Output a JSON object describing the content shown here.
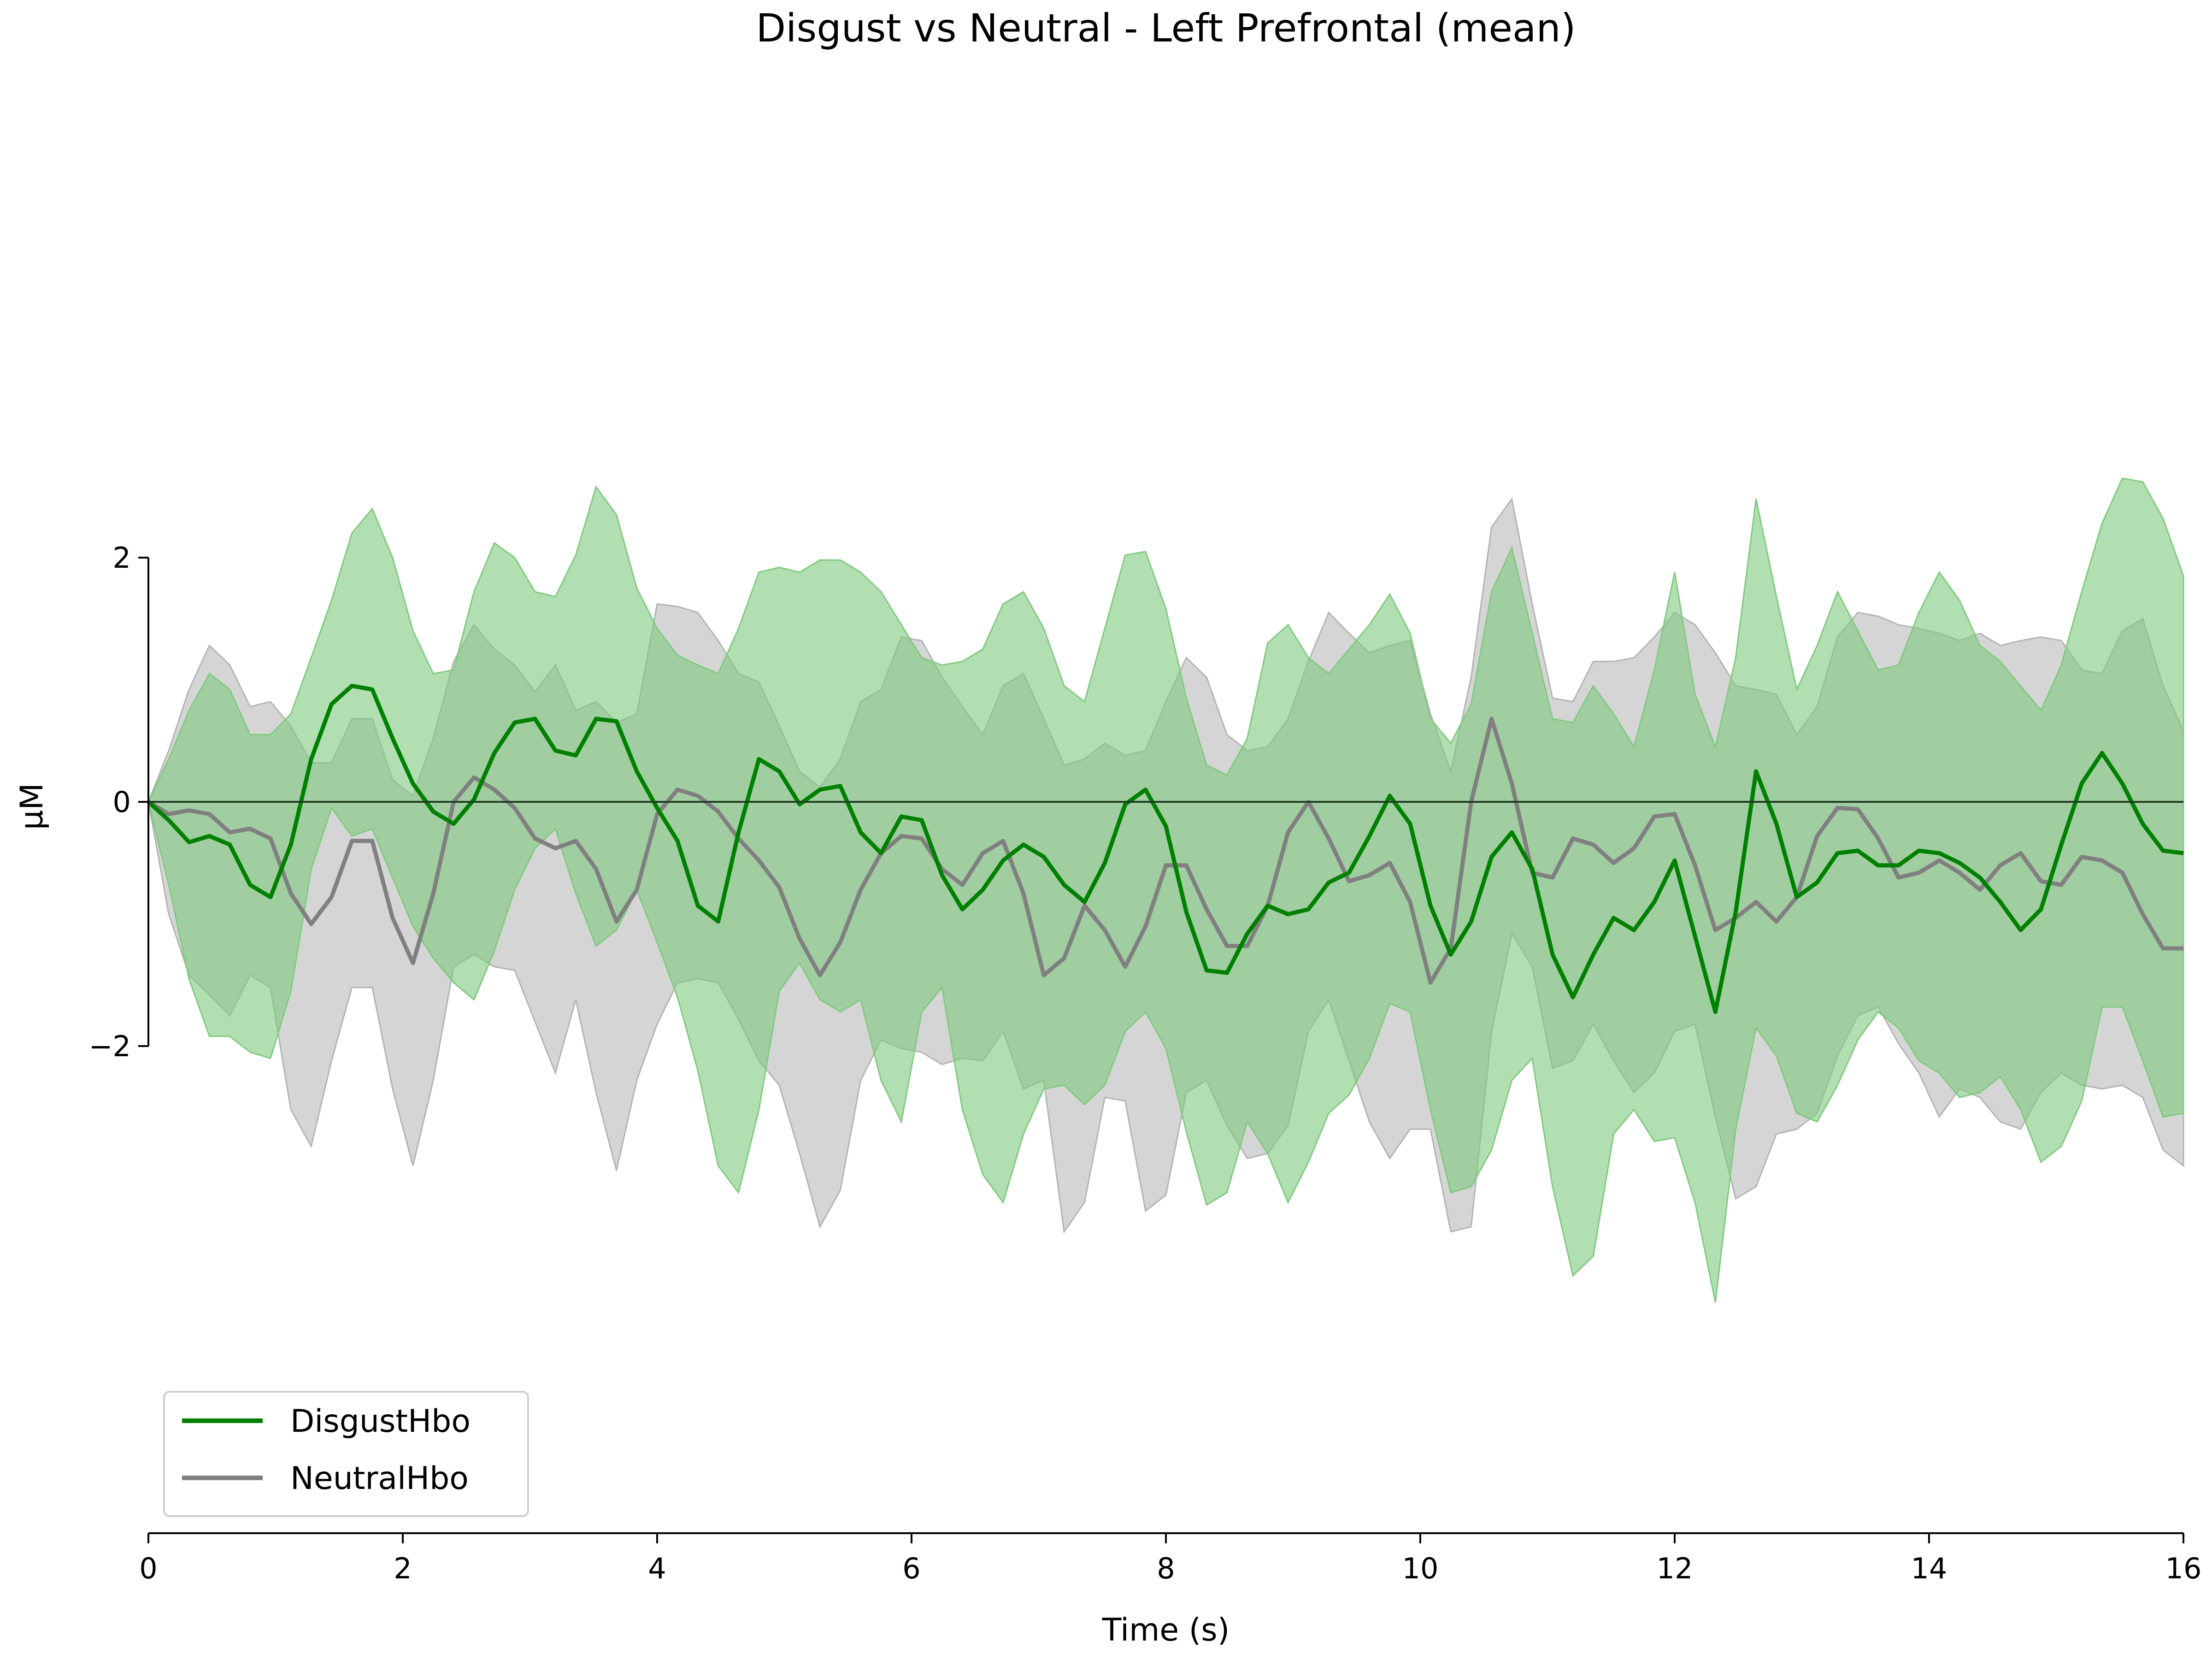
{
  "chart_data": {
    "type": "line",
    "title": "Disgust vs Neutral - Left Prefrontal (mean)",
    "xlabel": "Time (s)",
    "ylabel": "µM",
    "xlim": [
      0,
      16
    ],
    "ylim": [
      -5,
      5
    ],
    "x_ticks": [
      0,
      2,
      4,
      6,
      8,
      10,
      12,
      14,
      16
    ],
    "x_tick_labels": [
      "0",
      "2",
      "4",
      "6",
      "8",
      "10",
      "12",
      "14",
      "16"
    ],
    "y_ticks": [
      -2,
      0,
      2
    ],
    "y_tick_labels": [
      "−2",
      "0",
      "2"
    ],
    "grid": false,
    "legend_position": "lower-left",
    "zero_line": true,
    "x": [
      0.0,
      0.16,
      0.32,
      0.48,
      0.64,
      0.8,
      0.96,
      1.12,
      1.28,
      1.44,
      1.6,
      1.76,
      1.92,
      2.08,
      2.24,
      2.4,
      2.56,
      2.72,
      2.88,
      3.04,
      3.2,
      3.36,
      3.52,
      3.68,
      3.84,
      4.0,
      4.16,
      4.32,
      4.48,
      4.64,
      4.8,
      4.96,
      5.12,
      5.28,
      5.44,
      5.6,
      5.76,
      5.92,
      6.08,
      6.24,
      6.4,
      6.56,
      6.72,
      6.88,
      7.04,
      7.2,
      7.36,
      7.52,
      7.68,
      7.84,
      8.0,
      8.16,
      8.32,
      8.48,
      8.64,
      8.8,
      8.96,
      9.12,
      9.28,
      9.44,
      9.6,
      9.76,
      9.92,
      10.08,
      10.24,
      10.4,
      10.56,
      10.72,
      10.88,
      11.04,
      11.2,
      11.36,
      11.52,
      11.68,
      11.84,
      12.0,
      12.16,
      12.32,
      12.48,
      12.64,
      12.8,
      12.96,
      13.12,
      13.28,
      13.44,
      13.6,
      13.76,
      13.92,
      14.08,
      14.24,
      14.4,
      14.56,
      14.72,
      14.88,
      15.04,
      15.2,
      15.36,
      15.52,
      15.68,
      15.84,
      16.0
    ],
    "series": [
      {
        "name": "DisgustHbo",
        "color": "#008000",
        "band_color": "#7fc97f",
        "values": [
          0.0,
          -0.15,
          -0.33,
          -0.28,
          -0.35,
          -0.68,
          -0.78,
          -0.35,
          0.35,
          0.8,
          0.95,
          0.92,
          0.52,
          0.15,
          -0.08,
          -0.18,
          0.02,
          0.4,
          0.65,
          0.68,
          0.42,
          0.38,
          0.68,
          0.66,
          0.25,
          -0.05,
          -0.32,
          -0.85,
          -0.98,
          -0.25,
          0.35,
          0.25,
          -0.02,
          0.1,
          0.13,
          -0.25,
          -0.42,
          -0.12,
          -0.15,
          -0.6,
          -0.88,
          -0.72,
          -0.48,
          -0.35,
          -0.45,
          -0.68,
          -0.82,
          -0.5,
          -0.02,
          0.1,
          -0.2,
          -0.9,
          -1.38,
          -1.4,
          -1.08,
          -0.85,
          -0.92,
          -0.88,
          -0.66,
          -0.58,
          -0.28,
          0.05,
          -0.18,
          -0.85,
          -1.25,
          -0.98,
          -0.45,
          -0.25,
          -0.55,
          -1.25,
          -1.6,
          -1.25,
          -0.95,
          -1.05,
          -0.82,
          -0.48,
          -1.1,
          -1.72,
          -0.9,
          0.25,
          -0.18,
          -0.78,
          -0.66,
          -0.42,
          -0.4,
          -0.52,
          -0.52,
          -0.4,
          -0.42,
          -0.5,
          -0.62,
          -0.82,
          -1.05,
          -0.88,
          -0.35,
          0.15,
          0.4,
          0.15,
          -0.18,
          -0.4,
          -0.42
        ],
        "upper": [
          0.0,
          0.35,
          0.75,
          1.05,
          0.92,
          0.55,
          0.55,
          0.72,
          1.18,
          1.65,
          2.2,
          2.4,
          2.0,
          1.4,
          1.05,
          1.08,
          1.72,
          2.12,
          2.0,
          1.72,
          1.68,
          2.02,
          2.58,
          2.35,
          1.75,
          1.42,
          1.2,
          1.12,
          1.05,
          1.42,
          1.88,
          1.92,
          1.88,
          1.98,
          1.98,
          1.88,
          1.72,
          1.45,
          1.18,
          1.12,
          1.15,
          1.25,
          1.62,
          1.72,
          1.42,
          0.95,
          0.82,
          1.42,
          2.02,
          2.05,
          1.58,
          0.85,
          0.3,
          0.22,
          0.52,
          1.3,
          1.45,
          1.18,
          1.05,
          1.25,
          1.45,
          1.7,
          1.38,
          0.68,
          0.48,
          0.8,
          1.72,
          2.08,
          1.38,
          0.68,
          0.65,
          0.95,
          0.72,
          0.45,
          1.08,
          1.88,
          0.88,
          0.45,
          1.18,
          2.48,
          1.68,
          0.92,
          1.28,
          1.72,
          1.4,
          1.08,
          1.12,
          1.55,
          1.88,
          1.65,
          1.28,
          1.15,
          0.95,
          0.75,
          1.12,
          1.72,
          2.28,
          2.65,
          2.62,
          2.32,
          1.85
        ],
        "lower": [
          0.0,
          -0.68,
          -1.45,
          -1.92,
          -1.92,
          -2.05,
          -2.1,
          -1.55,
          -0.55,
          -0.05,
          -0.28,
          -0.22,
          -0.62,
          -1.02,
          -1.28,
          -1.48,
          -1.62,
          -1.22,
          -0.72,
          -0.38,
          -0.22,
          -0.75,
          -1.18,
          -1.05,
          -0.72,
          -1.15,
          -1.6,
          -2.2,
          -2.98,
          -3.2,
          -2.52,
          -1.55,
          -1.32,
          -1.62,
          -1.72,
          -1.62,
          -2.28,
          -2.62,
          -1.72,
          -1.52,
          -2.52,
          -3.05,
          -3.28,
          -2.72,
          -2.35,
          -2.32,
          -2.48,
          -2.32,
          -1.88,
          -1.72,
          -2.02,
          -2.7,
          -3.3,
          -3.2,
          -2.62,
          -2.88,
          -3.28,
          -2.95,
          -2.55,
          -2.4,
          -2.1,
          -1.65,
          -1.72,
          -2.52,
          -3.2,
          -3.15,
          -2.85,
          -2.28,
          -2.1,
          -3.15,
          -3.88,
          -3.72,
          -2.72,
          -2.52,
          -2.78,
          -2.75,
          -3.28,
          -4.1,
          -2.68,
          -1.85,
          -2.08,
          -2.55,
          -2.62,
          -2.32,
          -1.95,
          -1.72,
          -1.85,
          -2.12,
          -2.22,
          -2.42,
          -2.38,
          -2.25,
          -2.52,
          -2.95,
          -2.82,
          -2.45,
          -1.68,
          -1.68,
          -2.12,
          -2.58,
          -2.55
        ]
      },
      {
        "name": "NeutralHbo",
        "color": "#808080",
        "band_color": "#b3b3b3",
        "values": [
          0.0,
          -0.1,
          -0.07,
          -0.1,
          -0.25,
          -0.22,
          -0.3,
          -0.75,
          -1.0,
          -0.78,
          -0.32,
          -0.32,
          -0.95,
          -1.32,
          -0.75,
          0.0,
          0.2,
          0.1,
          -0.05,
          -0.3,
          -0.38,
          -0.32,
          -0.55,
          -0.98,
          -0.72,
          -0.1,
          0.1,
          0.05,
          -0.08,
          -0.3,
          -0.48,
          -0.7,
          -1.12,
          -1.42,
          -1.15,
          -0.72,
          -0.42,
          -0.28,
          -0.3,
          -0.55,
          -0.68,
          -0.42,
          -0.32,
          -0.75,
          -1.42,
          -1.28,
          -0.85,
          -1.05,
          -1.35,
          -1.02,
          -0.52,
          -0.52,
          -0.88,
          -1.18,
          -1.18,
          -0.85,
          -0.25,
          0.0,
          -0.3,
          -0.65,
          -0.6,
          -0.5,
          -0.82,
          -1.48,
          -1.2,
          0.0,
          0.68,
          0.15,
          -0.58,
          -0.62,
          -0.3,
          -0.35,
          -0.5,
          -0.38,
          -0.12,
          -0.1,
          -0.52,
          -1.05,
          -0.95,
          -0.82,
          -0.98,
          -0.78,
          -0.28,
          -0.05,
          -0.06,
          -0.3,
          -0.62,
          -0.58,
          -0.48,
          -0.58,
          -0.72,
          -0.52,
          -0.42,
          -0.65,
          -0.68,
          -0.45,
          -0.48,
          -0.58,
          -0.92,
          -1.2,
          -1.2
        ],
        "upper": [
          0.0,
          0.42,
          0.92,
          1.28,
          1.12,
          0.78,
          0.82,
          0.62,
          0.32,
          0.32,
          0.68,
          0.68,
          0.18,
          0.05,
          0.52,
          1.15,
          1.45,
          1.25,
          1.12,
          0.9,
          1.12,
          0.75,
          0.82,
          0.65,
          0.72,
          1.62,
          1.6,
          1.55,
          1.32,
          1.05,
          0.98,
          0.62,
          0.25,
          0.12,
          0.35,
          0.82,
          0.92,
          1.35,
          1.32,
          1.02,
          0.78,
          0.55,
          0.95,
          1.05,
          0.68,
          0.3,
          0.35,
          0.48,
          0.38,
          0.42,
          0.82,
          1.18,
          1.02,
          0.55,
          0.42,
          0.45,
          0.68,
          1.15,
          1.55,
          1.38,
          1.22,
          1.28,
          1.32,
          0.72,
          0.25,
          1.02,
          2.25,
          2.48,
          1.62,
          0.85,
          0.82,
          1.15,
          1.15,
          1.18,
          1.35,
          1.55,
          1.45,
          1.22,
          0.95,
          0.92,
          0.88,
          0.55,
          0.78,
          1.35,
          1.55,
          1.52,
          1.45,
          1.42,
          1.38,
          1.32,
          1.38,
          1.28,
          1.32,
          1.35,
          1.32,
          1.08,
          1.05,
          1.4,
          1.5,
          0.95,
          0.58
        ],
        "lower": [
          0.0,
          -0.92,
          -1.42,
          -1.58,
          -1.75,
          -1.42,
          -1.52,
          -2.52,
          -2.82,
          -2.12,
          -1.52,
          -1.52,
          -2.35,
          -2.98,
          -2.28,
          -1.35,
          -1.25,
          -1.35,
          -1.38,
          -1.8,
          -2.22,
          -1.62,
          -2.38,
          -3.02,
          -2.28,
          -1.82,
          -1.48,
          -1.45,
          -1.48,
          -1.78,
          -2.12,
          -2.32,
          -2.88,
          -3.48,
          -3.18,
          -2.28,
          -1.95,
          -2.02,
          -2.05,
          -2.15,
          -2.1,
          -2.12,
          -1.88,
          -2.35,
          -2.28,
          -3.52,
          -3.28,
          -2.42,
          -2.45,
          -3.35,
          -3.22,
          -2.38,
          -2.28,
          -2.65,
          -2.92,
          -2.88,
          -2.65,
          -1.88,
          -1.62,
          -2.12,
          -2.62,
          -2.92,
          -2.68,
          -2.68,
          -3.52,
          -3.48,
          -1.88,
          -1.08,
          -1.35,
          -2.18,
          -2.12,
          -1.82,
          -2.12,
          -2.38,
          -2.22,
          -1.88,
          -1.82,
          -2.58,
          -3.25,
          -3.15,
          -2.72,
          -2.68,
          -2.55,
          -2.08,
          -1.75,
          -1.68,
          -1.98,
          -2.22,
          -2.58,
          -2.35,
          -2.42,
          -2.62,
          -2.68,
          -2.38,
          -2.22,
          -2.32,
          -2.35,
          -2.32,
          -2.42,
          -2.85,
          -2.98
        ]
      }
    ]
  }
}
